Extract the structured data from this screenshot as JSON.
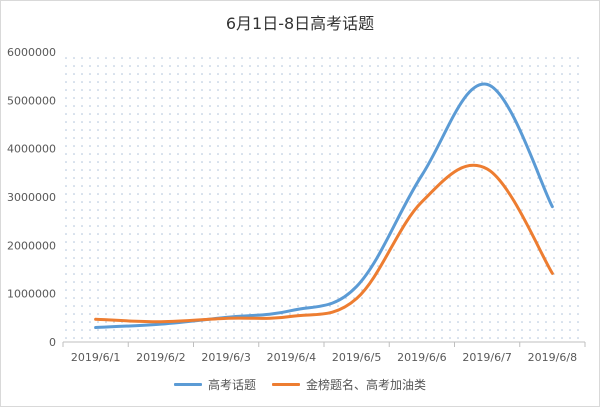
{
  "chart_data": {
    "type": "line",
    "title": "6月1日-8日高考话题",
    "xlabel": "",
    "ylabel": "",
    "categories": [
      "2019/6/1",
      "2019/6/2",
      "2019/6/3",
      "2019/6/4",
      "2019/6/5",
      "2019/6/6",
      "2019/6/7",
      "2019/6/8"
    ],
    "ylim": [
      0,
      6000000
    ],
    "yticks": [
      "0",
      "1000000",
      "2000000",
      "3000000",
      "4000000",
      "5000000",
      "6000000"
    ],
    "grid": "dotted",
    "legend_position": "bottom",
    "series": [
      {
        "name": "高考话题",
        "color": "#5b9bd5",
        "values": [
          300000,
          370000,
          510000,
          650000,
          1150000,
          3450000,
          5330000,
          2800000
        ]
      },
      {
        "name": "金榜题名、高考加油类",
        "color": "#ed7d31",
        "values": [
          470000,
          420000,
          490000,
          530000,
          900000,
          2900000,
          3580000,
          1420000
        ]
      }
    ]
  }
}
